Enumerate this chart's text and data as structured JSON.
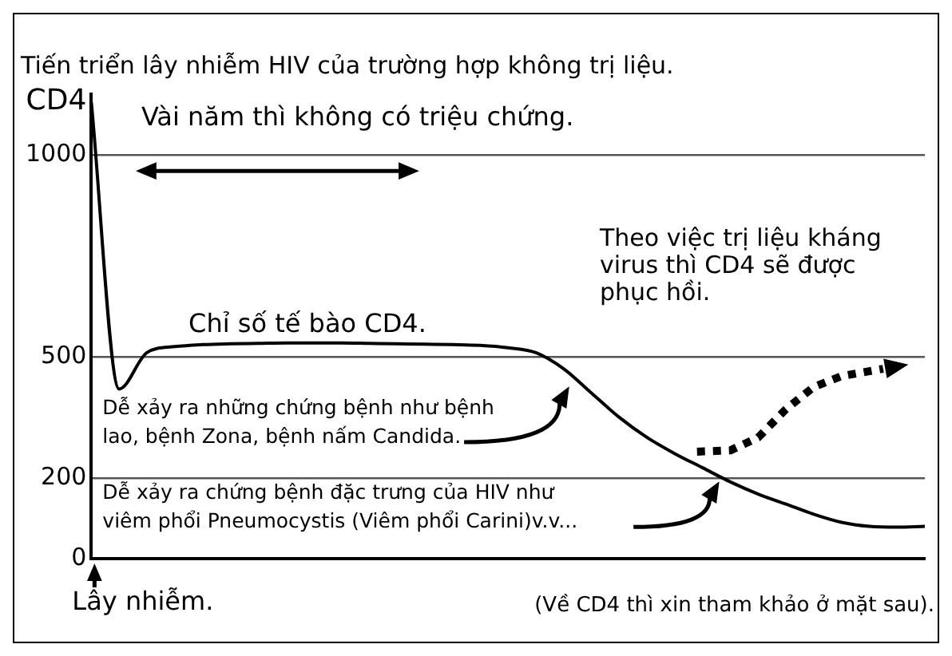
{
  "chart_data": {
    "type": "line",
    "title": "Tiến triển lây nhiễm HIV của trường hợp không trị liệu.",
    "ylabel": "CD4",
    "categories": [
      null,
      null,
      null,
      null,
      null,
      null,
      null,
      null,
      null,
      null,
      null,
      null,
      null,
      null,
      null,
      null,
      null,
      null,
      null,
      null,
      null,
      null,
      null,
      null,
      null,
      null,
      null,
      null,
      null,
      null,
      null
    ],
    "series": [
      {
        "name": "Chỉ số tế bào CD4.",
        "color": "#000000",
        "line_style": "solid",
        "values": [
          1130,
          420,
          510,
          525,
          530,
          532,
          533,
          534,
          534,
          534,
          533,
          532,
          531,
          530,
          528,
          522,
          510,
          470,
          410,
          350,
          300,
          260,
          225,
          190,
          160,
          135,
          110,
          90,
          80,
          78,
          80
        ]
      }
    ],
    "ylim": [
      0,
      1150
    ],
    "yticks": [
      0,
      200,
      500,
      1000
    ],
    "grid": "y",
    "legend": false,
    "marker": "none",
    "tick_labels": "y",
    "annotations": [
      "Vài năm thì không có triệu chứng.",
      "Dễ xảy ra những chứng bệnh như bệnh lao, bệnh Zona, bệnh nấm Candida.",
      "Dễ xảy ra chứng bệnh đặc trưng của HIV như viêm phổi Pneumocystis (Viêm phổi Carini)v.v...",
      "Lây nhiễm.",
      "(Về CD4 thì xin tham khảo ở mặt sau).",
      "Theo việc trị liệu kháng virus thì CD4 sẽ được phục hồi."
    ]
  }
}
